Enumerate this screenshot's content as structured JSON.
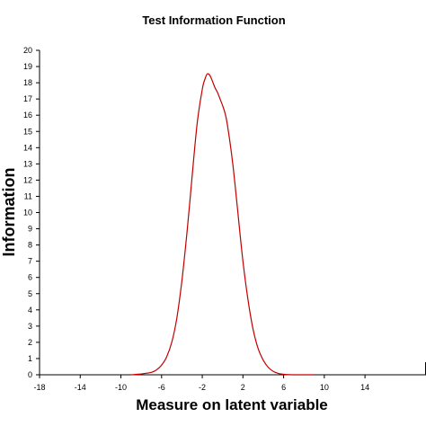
{
  "chart_data": {
    "type": "line",
    "title": "Test Information Function",
    "xlabel": "Measure on latent variable",
    "ylabel": "Information",
    "xlim": [
      -18,
      20
    ],
    "ylim": [
      0,
      20
    ],
    "xticks": [
      -18,
      -14,
      -10,
      -6,
      -2,
      2,
      6,
      10,
      14
    ],
    "yticks": [
      0,
      1,
      2,
      3,
      4,
      5,
      6,
      7,
      8,
      9,
      10,
      11,
      12,
      13,
      14,
      15,
      16,
      17,
      18,
      19,
      20
    ],
    "grid": false,
    "series": [
      {
        "color": "#c00000",
        "x": [
          -9,
          -8,
          -7,
          -6.5,
          -6,
          -5.5,
          -5,
          -4.5,
          -4,
          -3.5,
          -3,
          -2.5,
          -2,
          -1.75,
          -1.5,
          -1.25,
          -1,
          -0.75,
          -0.5,
          -0.25,
          0,
          0.25,
          0.5,
          1,
          1.5,
          2,
          2.5,
          3,
          3.5,
          4,
          4.5,
          5,
          5.5,
          6,
          6.5,
          7,
          8,
          9
        ],
        "y": [
          0,
          0.05,
          0.15,
          0.3,
          0.6,
          1.1,
          2.0,
          3.5,
          5.8,
          8.8,
          12.2,
          15.5,
          17.6,
          18.2,
          18.55,
          18.45,
          18.1,
          17.7,
          17.4,
          17.0,
          16.6,
          16.1,
          15.3,
          13.0,
          10.0,
          7.0,
          4.6,
          2.8,
          1.6,
          0.9,
          0.45,
          0.2,
          0.08,
          0.03,
          0.01,
          0,
          0,
          0
        ]
      }
    ]
  }
}
